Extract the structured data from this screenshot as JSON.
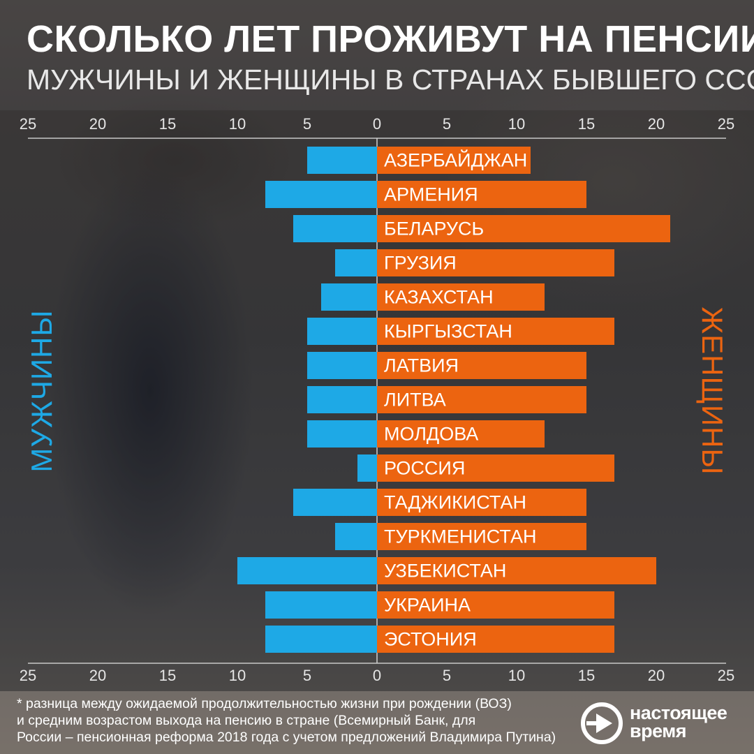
{
  "header": {
    "title": "СКОЛЬКО ЛЕТ ПРОЖИВУТ НА ПЕНСИИ",
    "subtitle": "МУЖЧИНЫ И ЖЕНЩИНЫ В СТРАНАХ БЫВШЕГО СССР"
  },
  "side_labels": {
    "men": "МУЖЧИНЫ",
    "women": "ЖЕНЩИНЫ"
  },
  "colors": {
    "men": "#1ea9e6",
    "women": "#ec6410",
    "text": "#ffffff"
  },
  "chart_data": {
    "type": "bar",
    "orientation": "horizontal",
    "layout": "back-to-back (population pyramid)",
    "categories": [
      "АЗЕРБАЙДЖАН",
      "АРМЕНИЯ",
      "БЕЛАРУСЬ",
      "ГРУЗИЯ",
      "КАЗАХСТАН",
      "КЫРГЫЗСТАН",
      "ЛАТВИЯ",
      "ЛИТВА",
      "МОЛДОВА",
      "РОССИЯ",
      "ТАДЖИКИСТАН",
      "ТУРКМЕНИСТАН",
      "УЗБЕКИСТАН",
      "УКРАИНА",
      "ЭСТОНИЯ"
    ],
    "series": [
      {
        "name": "МУЖЧИНЫ",
        "color": "#1ea9e6",
        "direction": "left",
        "values": [
          5,
          8,
          6,
          3,
          4,
          5,
          5,
          5,
          5,
          1.4,
          6,
          3,
          10,
          8,
          8
        ]
      },
      {
        "name": "ЖЕНЩИНЫ",
        "color": "#ec6410",
        "direction": "right",
        "values": [
          11,
          15,
          21,
          17,
          12,
          17,
          15,
          15,
          12,
          17,
          15,
          15,
          20,
          17,
          17
        ]
      }
    ],
    "axis_range": [
      0,
      25
    ],
    "ticks": [
      "25",
      "20",
      "15",
      "10",
      "5",
      "0",
      "5",
      "10",
      "15",
      "20",
      "25"
    ],
    "axes_shown": [
      "top",
      "bottom"
    ],
    "grid": false
  },
  "footnote": {
    "lines": [
      "* разница между ожидаемой продолжительностью жизни при рождении (ВОЗ)",
      "и средним возрастом выхода на пенсию в стране (Всемирный Банк, для",
      "России – пенсионная реформа 2018 года с учетом предложений Владимира Путина)"
    ]
  },
  "logo": {
    "line1": "настоящее",
    "line2": "время"
  }
}
